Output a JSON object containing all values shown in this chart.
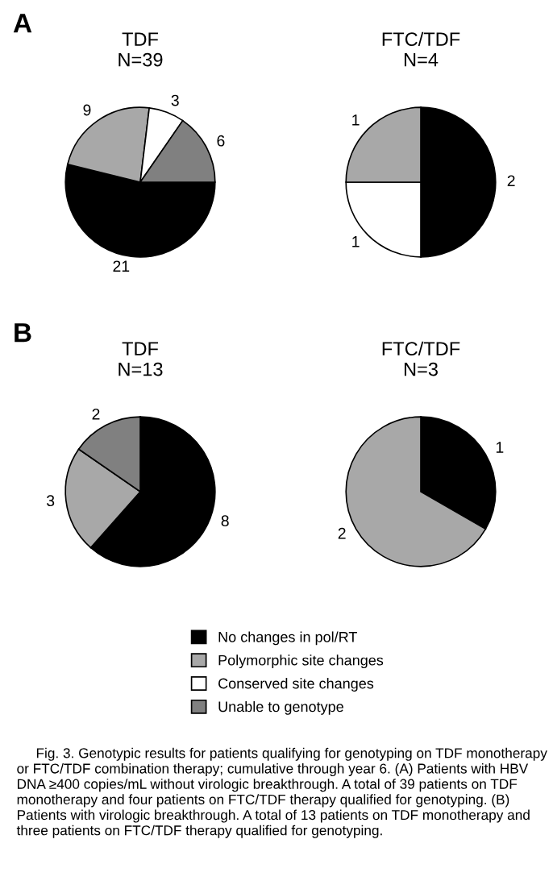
{
  "chart_data": [
    {
      "type": "pie",
      "title": "TDF\nN=39",
      "annotations": [
        "A"
      ],
      "categories": [
        "No changes in pol/RT",
        "Polymorphic site changes",
        "Conserved site changes",
        "Unable to genotype"
      ],
      "values": [
        21,
        9,
        3,
        6
      ],
      "colors": [
        "#000000",
        "#a8a8a8",
        "#ffffff",
        "#808080"
      ],
      "data_labels": true,
      "legend": "bottom"
    },
    {
      "type": "pie",
      "title": "FTC/TDF\nN=4",
      "categories": [
        null,
        null,
        null
      ],
      "values": [
        2,
        1,
        1
      ],
      "colors": [
        "#000000",
        "#ffffff",
        "#a8a8a8"
      ],
      "data_labels": true
    },
    {
      "type": "pie",
      "title": "TDF\nN=13",
      "annotations": [
        "B"
      ],
      "categories": [
        null,
        null,
        null
      ],
      "values": [
        8,
        3,
        2
      ],
      "colors": [
        "#000000",
        "#a8a8a8",
        "#808080"
      ],
      "data_labels": true
    },
    {
      "type": "pie",
      "title": "FTC/TDF\nN=3",
      "annotations": [
        "Fig. 3. Genotypic results for patients qualifying for genotyping on TDF monotherapy or FTC/TDF combination therapy; cumulative through year 6. (A) Patients with HBV DNA ≥400 copies/mL without virologic breakthrough. A total of 39 patients on TDF monotherapy and four patients on FTC/TDF therapy qualified for genotyping. (B) Patients with virologic breakthrough. A total of 13 patients on TDF monotherapy and three patients on FTC/TDF therapy qualified for genotyping."
      ],
      "categories": [
        null,
        null
      ],
      "values": [
        1,
        2
      ],
      "colors": [
        "#000000",
        "#a8a8a8"
      ],
      "data_labels": true
    }
  ]
}
